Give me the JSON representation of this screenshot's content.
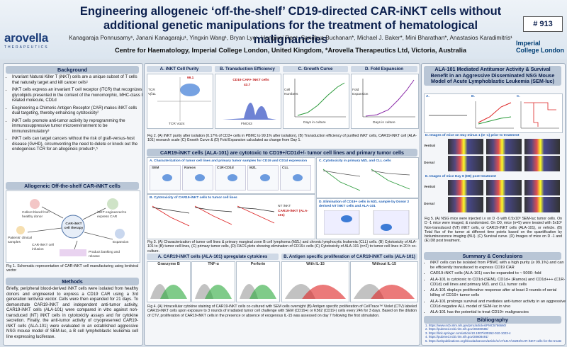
{
  "header": {
    "title": "Engineering allogeneic ‘off-the-shelf’ CD19-directed CAR-iNKT cells without additional genetic manipulations for the treatment of hematological malignancies",
    "authors": "Kanagaraja Ponnusamy¹, Janani Kanagaraju¹, Yingxin Wang¹, Bryan Lye¹, Hongwei Ren¹, Sandhya Buchanan*, Michael J. Baker*, Mini Bharathan*, Anastasios Karadimitris¹",
    "affiliation": "Centre for Haematology, Imperial College London, United Kingdom, *Arovella Therapeutics Ltd, Victoria, Australia",
    "poster_id": "# 913",
    "logo_left": "arovella",
    "logo_left_sub": "THERAPEUTICS",
    "logo_right": "Imperial College London"
  },
  "background": {
    "heading": "Background",
    "bullets": [
      "Invariant Natural Killer T (iNKT) cells are a unique subset of T cells that naturally target and kill cancer cells¹",
      "iNKT cells express an invariant T cell receptor (iTCR) that recognizes glycolipids presented in the context of the monomorphic, MHC-class I related molecule, CD1d",
      "Engineering a Chimeric Antigen Receptor (CAR) makes iNKT cells dual targeting, thereby enhancing cytotoxicity²",
      "iNKT cells promote anti-tumor activity by reprogramming the immunosuppressive tumor microenvironment to be immunostimulatory³",
      "iNKT cells can target cancers without the risk of graft-versus-host disease (GvHD), circumventing the need to delete or knock out the endogenous TCR for an allogeneic product⁴,⁵"
    ]
  },
  "figure1": {
    "heading": "Allogeneic Off-the-shelf CAR-iNKT cells",
    "labels": [
      "Collect blood from healthy donor",
      "iNKT engineered to express CAR",
      "Patients' clinical samples",
      "CAR-iNKT cell therapy",
      "Expansion",
      "CAR-iNKT cell infusion",
      "Product banking and release"
    ],
    "caption": "Fig 1. Schematic representation of CAR-iNKT cell manufacturing using lentiviral vector"
  },
  "methods": {
    "heading": "Methods",
    "text": "Briefly, peripheral blood-derived iNKT cells were isolated from healthy donors and engineered to express a CD19 CAR using a 3rd generation lentiviral vector. Cells were then expanded for 21 days. To demonstrate CAR19-iNKT and independent anti-tumor activity, CAR19-iNKT cells (ALA-101) were compared in vitro against non-transduced (NT) iNKT cells in cytotoxicity assays and for cytokine secretion. Finally, the anti-tumor activity of cryopreserved CAR19-iNKT cells (ALA-101) were evaluated in an established aggressive NSG mouse model of SEM-luc, a B cell lymphoblastic leukemia cell line expressing luciferase."
  },
  "figure2": {
    "panels": [
      "A. iNKT Cell Purity",
      "B. Transduction Efficiency",
      "C. Growth Curve",
      "D. Fold Expansion"
    ],
    "purity_value": "99.1",
    "car_label": "CD19 CAR+ iNKT cells",
    "car_value": "43.7",
    "axis_labels": [
      "TCR Vα24",
      "TCR Vβ11",
      "FMC63",
      "Cell Numbers",
      "Days in culture",
      "Fold Expansion",
      "Days in culture"
    ],
    "caption": "Fig 2. (A) iNKT purity after isolation (0.17% of CD3+ cells in PBMC to 99.1% after isolation), (B) Transduction efficiency of purified iNKT cells, CAR19-iNKT cell (ALA-101) research scale (C) Growth Curve & (D) Fold Expansion calculated as change from Day 1."
  },
  "figure3": {
    "heading": "CAR19-iNKT cells (ALA-101) are cytotoxic to CD19+/CD1d+/- tumor cell lines and primary tumor cells",
    "panels": [
      "A. Characterization of tumor cell lines and primary tumor samples for CD19 and CD1d expression",
      "B. Cytotoxicity of CAR19-iNKT cells to tumor cell lines",
      "C. Cytotoxicity in primary MZL and CLL cells",
      "D. Elimination of CD19+ cells in MZL sample by Donor 2 derived NT iNKT cells and ALA-101"
    ],
    "cell_lines": [
      "SEM",
      "Ramos",
      "C1R-CD1d",
      "MZL",
      "CLL"
    ],
    "legend": [
      "NT iNKT",
      "CAR19-iNKT (ALA-101)"
    ],
    "caption": "Fig 3. (A) Characterization of tumor cell lines & primary marginal zone B cell lymphoma (MZL) and chronic lymphocytic leukemia (CLL) cells. (B) Cytotoxicity of ALA-101 to (B) tumor cell lines, (C) primary tumor cells, (D) FACS plots showing elimination of CD19+ cells (C) Cytotoxicity of ALA-101 (n=2) to tumor cell lines in 20 h co-culture."
  },
  "figure4": {
    "panels": [
      "A. CAR19-iNKT cells (ALA-101) upregulate cytokines",
      "B. Antigen specific proliferation of CAR19-iNKT cells (ALA-101)"
    ],
    "subtitles": [
      "Granzyme B",
      "TNF-α",
      "Perforin",
      "With IL-15",
      "Without IL-15"
    ],
    "caption": "Fig 4. (A) Intracellular cytokine staining of CAR19-iNKT cells co-cultured with SEM cells overnight (B) Antigen specific proliferation of CellTrace™ Violet (CTV) labeled CAR19-iNKT cells upon exposure to 3 rounds of irradiated tumor cell challenge with SEM (CD19+) or K562 (CD19-) cells every 24h for 3 days. Based on the dilution of CTV, proliferation of CAR19-iNKT cells in the presence or absence of exogenous IL-15 was assessed on day 7 following the first stimulation."
  },
  "figure5": {
    "heading": "ALA-101 Mediated Antitumor Activity & Survival Benefit in an Aggressive Disseminated NSG Mouse Model of Acute Lymphoblastic Leukemia (SEM-luc)",
    "panels": [
      "A.",
      "B.",
      "C.",
      "D. Images of mice on Day minus 1 (D -1) prior to treatment",
      "E. Images of mice Day 8 (D8) post treatment"
    ],
    "rows": [
      "Ventral",
      "Dorsal",
      "Ventral",
      "Dorsal"
    ],
    "caption": "Fig 5. (A) NSG mice were injected i.v on D -5 with 0.5x10⁶ SEM-luc tumor cells. On D -1 mice were imaged, & randomized. On D0, mice (n=5) were treated with 5x10⁶ Non-transduced (NT) iNKT cells, or CAR19-iNKT cells (ALA-101), or vehicle. (B) Total flux of the tumor at different time points based on the quantification by bioluminescence imaging (BLI). (C) Survival curve. (D) Images of mice on D -1 and (E) D8 post treatment."
  },
  "summary": {
    "heading": "Summary & Conclusions",
    "bullets": [
      "iNKT cells can be isolated from PBMC with a high purity (≥ 99.1%) and can be efficiently transduced to express CD19 CAR",
      "CAR19-iNKT cells (ALA-101) can be expanded to ~ 5000- fold",
      "ALA-101 is cytotoxic to CD1d-(SEM), CD1d+ (Ramos) and CD1d+++ (C1R-CD1d) cell lines and primary MZL and CLL tumor cells",
      "ALA-101 displays proliferative response after at least 3 rounds of serial killing of CD19+ tumor cells",
      "ALA-101 prolongs survival and mediates anti-tumor activity in an aggressive CD1d-negative ALL model of SEM-luc in vivo",
      "ALA-101 has the potential to treat CD19+ malignancies"
    ]
  },
  "bibliography": {
    "heading": "Bibliography",
    "refs": [
      "1. https://www.ncbi.nlm.nih.gov/pmc/articles/PMC5766660/",
      "2. https://pubmed.ncbi.nlm.nih.gov/30300585/",
      "3. https://link.springer.com/article/10.1007/s00262-010-1023-4",
      "4. https://pubmed.ncbi.nlm.nih.gov/28608491/",
      "5. https://ashpublications.org/bloodadvances/article/1/17/1417/16293/CAR-iNKT-cells-for-the-treatment-of-lymphoma"
    ]
  }
}
